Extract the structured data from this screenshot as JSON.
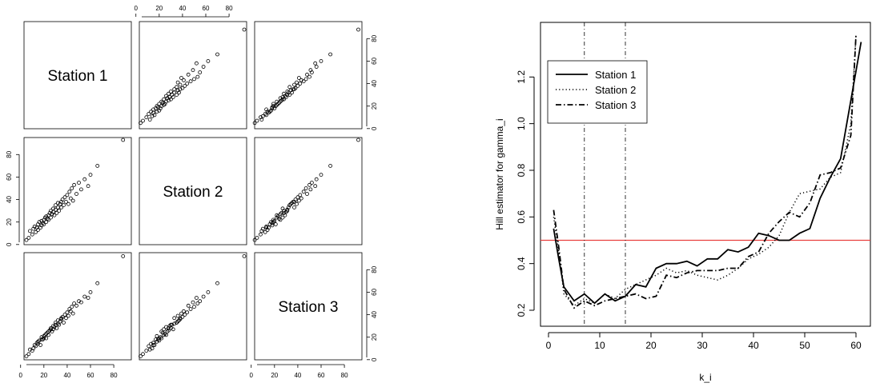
{
  "chart_data": [
    {
      "type": "scatter-matrix",
      "variables": [
        "Station 1",
        "Station 2",
        "Station 3"
      ],
      "ticks": [
        0,
        20,
        40,
        60,
        80
      ],
      "xlim": [
        5,
        93
      ],
      "ylim": [
        2,
        93
      ],
      "observations": [
        {
          "s1": 5,
          "s2": 4,
          "s3": 3
        },
        {
          "s1": 7,
          "s2": 6,
          "s3": 5
        },
        {
          "s1": 8,
          "s2": 12,
          "s3": 9
        },
        {
          "s1": 10,
          "s2": 9,
          "s3": 8
        },
        {
          "s1": 11,
          "s2": 14,
          "s3": 10
        },
        {
          "s1": 12,
          "s2": 16,
          "s3": 13
        },
        {
          "s1": 13,
          "s2": 11,
          "s3": 12
        },
        {
          "s1": 14,
          "s2": 15,
          "s3": 15
        },
        {
          "s1": 15,
          "s2": 13,
          "s3": 14
        },
        {
          "s1": 15,
          "s2": 18,
          "s3": 16
        },
        {
          "s1": 16,
          "s2": 20,
          "s3": 17
        },
        {
          "s1": 17,
          "s2": 15,
          "s3": 13
        },
        {
          "s1": 18,
          "s2": 17,
          "s3": 18
        },
        {
          "s1": 18,
          "s2": 21,
          "s3": 20
        },
        {
          "s1": 19,
          "s2": 19,
          "s3": 18
        },
        {
          "s1": 20,
          "s2": 22,
          "s3": 19
        },
        {
          "s1": 20,
          "s2": 18,
          "s3": 21
        },
        {
          "s1": 21,
          "s2": 24,
          "s3": 22
        },
        {
          "s1": 22,
          "s2": 20,
          "s3": 19
        },
        {
          "s1": 22,
          "s2": 25,
          "s3": 23
        },
        {
          "s1": 23,
          "s2": 23,
          "s3": 24
        },
        {
          "s1": 24,
          "s2": 26,
          "s3": 22
        },
        {
          "s1": 24,
          "s2": 22,
          "s3": 25
        },
        {
          "s1": 25,
          "s2": 28,
          "s3": 26
        },
        {
          "s1": 26,
          "s2": 24,
          "s3": 27
        },
        {
          "s1": 26,
          "s2": 30,
          "s3": 28
        },
        {
          "s1": 27,
          "s2": 27,
          "s3": 25
        },
        {
          "s1": 28,
          "s2": 29,
          "s3": 30
        },
        {
          "s1": 28,
          "s2": 32,
          "s3": 27
        },
        {
          "s1": 29,
          "s2": 26,
          "s3": 29
        },
        {
          "s1": 30,
          "s2": 31,
          "s3": 31
        },
        {
          "s1": 30,
          "s2": 35,
          "s3": 33
        },
        {
          "s1": 31,
          "s2": 28,
          "s3": 28
        },
        {
          "s1": 32,
          "s2": 33,
          "s3": 32
        },
        {
          "s1": 32,
          "s2": 37,
          "s3": 35
        },
        {
          "s1": 33,
          "s2": 30,
          "s3": 31
        },
        {
          "s1": 34,
          "s2": 36,
          "s3": 34
        },
        {
          "s1": 35,
          "s2": 38,
          "s3": 36
        },
        {
          "s1": 35,
          "s2": 33,
          "s3": 37
        },
        {
          "s1": 36,
          "s2": 40,
          "s3": 38
        },
        {
          "s1": 37,
          "s2": 35,
          "s3": 33
        },
        {
          "s1": 38,
          "s2": 42,
          "s3": 40
        },
        {
          "s1": 39,
          "s2": 38,
          "s3": 37
        },
        {
          "s1": 40,
          "s2": 44,
          "s3": 42
        },
        {
          "s1": 41,
          "s2": 36,
          "s3": 39
        },
        {
          "s1": 42,
          "s2": 47,
          "s3": 45
        },
        {
          "s1": 43,
          "s2": 41,
          "s3": 43
        },
        {
          "s1": 44,
          "s2": 50,
          "s3": 47
        },
        {
          "s1": 45,
          "s2": 39,
          "s3": 41
        },
        {
          "s1": 46,
          "s2": 53,
          "s3": 50
        },
        {
          "s1": 48,
          "s2": 45,
          "s3": 48
        },
        {
          "s1": 50,
          "s2": 55,
          "s3": 52
        },
        {
          "s1": 52,
          "s2": 49,
          "s3": 51
        },
        {
          "s1": 55,
          "s2": 58,
          "s3": 56
        },
        {
          "s1": 58,
          "s2": 52,
          "s3": 55
        },
        {
          "s1": 60,
          "s2": 62,
          "s3": 60
        },
        {
          "s1": 66,
          "s2": 70,
          "s3": 68
        },
        {
          "s1": 88,
          "s2": 93,
          "s3": 92
        }
      ]
    },
    {
      "type": "line",
      "xlabel": "k_i",
      "ylabel": "Hill estimator for gamma_i",
      "xlim": [
        0,
        62
      ],
      "ylim": [
        0.18,
        1.38
      ],
      "xticks": [
        0,
        10,
        20,
        30,
        40,
        50,
        60
      ],
      "yticks": [
        0.2,
        0.4,
        0.6,
        0.8,
        1.0,
        1.2
      ],
      "legend": "top-left",
      "reference_lines": [
        {
          "orientation": "horizontal",
          "value": 0.5,
          "color": "#e8403f"
        },
        {
          "orientation": "vertical",
          "value": 7,
          "style": "dash-dot"
        },
        {
          "orientation": "vertical",
          "value": 15,
          "style": "dash-dot"
        }
      ],
      "series": [
        {
          "name": "Station 1",
          "style": "solid",
          "x": [
            1,
            2,
            3,
            5,
            7,
            9,
            11,
            13,
            15,
            17,
            19,
            21,
            23,
            25,
            27,
            29,
            31,
            33,
            35,
            37,
            39,
            41,
            43,
            45,
            47,
            49,
            51,
            53,
            55,
            57,
            59,
            61
          ],
          "y": [
            0.55,
            0.42,
            0.3,
            0.24,
            0.27,
            0.23,
            0.27,
            0.24,
            0.26,
            0.31,
            0.3,
            0.38,
            0.4,
            0.4,
            0.41,
            0.39,
            0.42,
            0.42,
            0.46,
            0.45,
            0.47,
            0.53,
            0.52,
            0.5,
            0.5,
            0.53,
            0.55,
            0.68,
            0.77,
            0.85,
            1.1,
            1.35
          ]
        },
        {
          "name": "Station 2",
          "style": "dotted",
          "x": [
            1,
            2,
            3,
            5,
            7,
            9,
            11,
            13,
            15,
            17,
            19,
            21,
            23,
            25,
            27,
            29,
            31,
            33,
            35,
            37,
            39,
            41,
            43,
            45,
            47,
            49,
            51,
            53,
            55,
            57,
            59,
            60
          ],
          "y": [
            0.6,
            0.45,
            0.27,
            0.22,
            0.25,
            0.23,
            0.27,
            0.25,
            0.29,
            0.31,
            0.33,
            0.35,
            0.38,
            0.36,
            0.37,
            0.35,
            0.34,
            0.33,
            0.35,
            0.38,
            0.42,
            0.44,
            0.47,
            0.52,
            0.62,
            0.7,
            0.71,
            0.72,
            0.77,
            0.79,
            1.0,
            1.38
          ]
        },
        {
          "name": "Station 3",
          "style": "dash-dot",
          "x": [
            1,
            2,
            3,
            5,
            7,
            9,
            11,
            13,
            15,
            17,
            19,
            21,
            23,
            25,
            27,
            29,
            31,
            33,
            35,
            37,
            39,
            41,
            43,
            45,
            47,
            49,
            51,
            53,
            55,
            57,
            59,
            60
          ],
          "y": [
            0.63,
            0.47,
            0.29,
            0.21,
            0.24,
            0.22,
            0.24,
            0.25,
            0.26,
            0.27,
            0.25,
            0.26,
            0.35,
            0.34,
            0.36,
            0.37,
            0.37,
            0.37,
            0.38,
            0.38,
            0.43,
            0.45,
            0.53,
            0.58,
            0.62,
            0.6,
            0.66,
            0.78,
            0.79,
            0.81,
            0.95,
            1.38
          ]
        }
      ]
    }
  ]
}
